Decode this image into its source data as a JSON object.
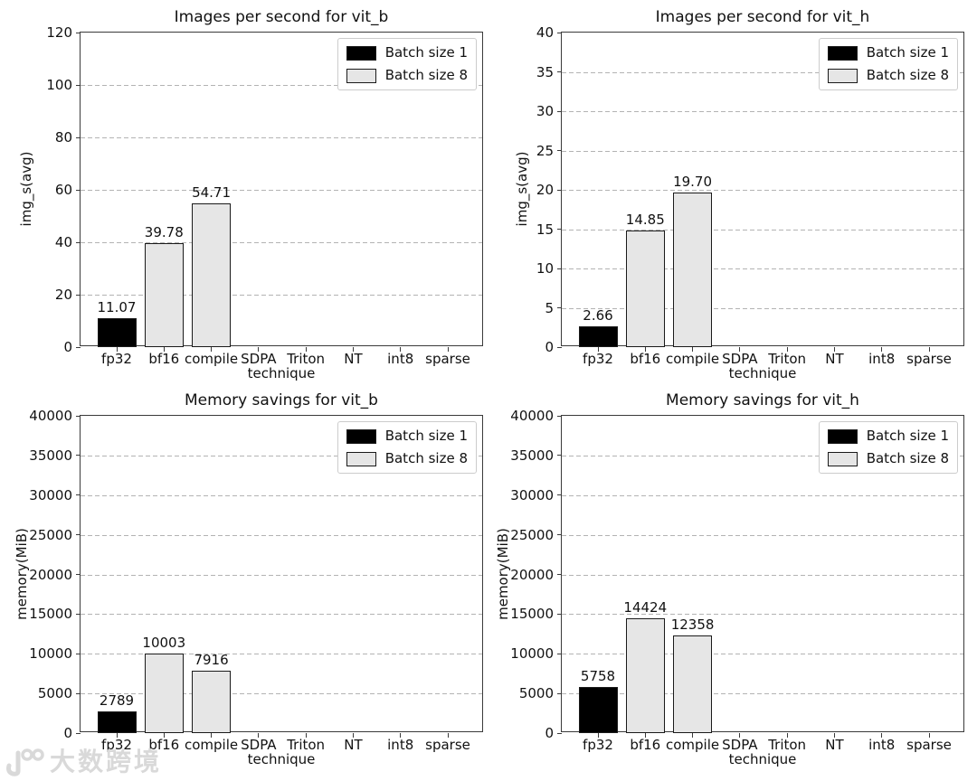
{
  "colors": {
    "batch1": "#000000",
    "batch8": "#e6e6e6",
    "bar_edge": "#1a1a1a",
    "grid": "#b3b3b3",
    "spine": "#3a3a3a",
    "background": "#ffffff",
    "watermark": "#d9d9d9"
  },
  "watermark": {
    "logo": "100",
    "text": "大数跨境"
  },
  "chart_data": [
    {
      "type": "bar",
      "title": "Images per second for vit_b",
      "xlabel": "technique",
      "ylabel": "img_s(avg)",
      "categories": [
        "fp32",
        "bf16",
        "compile",
        "SDPA",
        "Triton",
        "NT",
        "int8",
        "sparse"
      ],
      "ylim": [
        0,
        120
      ],
      "yticks": [
        0,
        20,
        40,
        60,
        80,
        100,
        120
      ],
      "grid": "horizontal-dashed",
      "legend_position": "upper-right",
      "legend": [
        "Batch size 1",
        "Batch size 8"
      ],
      "series": [
        {
          "name": "Batch size 1",
          "values": [
            11.07,
            null,
            null,
            null,
            null,
            null,
            null,
            null
          ]
        },
        {
          "name": "Batch size 8",
          "values": [
            null,
            39.78,
            54.71,
            null,
            null,
            null,
            null,
            null
          ]
        }
      ],
      "value_labels": [
        "11.07",
        "39.78",
        "54.71",
        null,
        null,
        null,
        null,
        null
      ]
    },
    {
      "type": "bar",
      "title": "Images per second for vit_h",
      "xlabel": "technique",
      "ylabel": "img_s(avg)",
      "categories": [
        "fp32",
        "bf16",
        "compile",
        "SDPA",
        "Triton",
        "NT",
        "int8",
        "sparse"
      ],
      "ylim": [
        0,
        40
      ],
      "yticks": [
        0,
        5,
        10,
        15,
        20,
        25,
        30,
        35,
        40
      ],
      "grid": "horizontal-dashed",
      "legend_position": "upper-right",
      "legend": [
        "Batch size 1",
        "Batch size 8"
      ],
      "series": [
        {
          "name": "Batch size 1",
          "values": [
            2.66,
            null,
            null,
            null,
            null,
            null,
            null,
            null
          ]
        },
        {
          "name": "Batch size 8",
          "values": [
            null,
            14.85,
            19.7,
            null,
            null,
            null,
            null,
            null
          ]
        }
      ],
      "value_labels": [
        "2.66",
        "14.85",
        "19.70",
        null,
        null,
        null,
        null,
        null
      ]
    },
    {
      "type": "bar",
      "title": "Memory savings for vit_b",
      "xlabel": "technique",
      "ylabel": "memory(MiB)",
      "categories": [
        "fp32",
        "bf16",
        "compile",
        "SDPA",
        "Triton",
        "NT",
        "int8",
        "sparse"
      ],
      "ylim": [
        0,
        40000
      ],
      "yticks": [
        0,
        5000,
        10000,
        15000,
        20000,
        25000,
        30000,
        35000,
        40000
      ],
      "grid": "horizontal-dashed",
      "legend_position": "upper-right",
      "legend": [
        "Batch size 1",
        "Batch size 8"
      ],
      "series": [
        {
          "name": "Batch size 1",
          "values": [
            2789,
            null,
            null,
            null,
            null,
            null,
            null,
            null
          ]
        },
        {
          "name": "Batch size 8",
          "values": [
            null,
            10003,
            7916,
            null,
            null,
            null,
            null,
            null
          ]
        }
      ],
      "value_labels": [
        "2789",
        "10003",
        "7916",
        null,
        null,
        null,
        null,
        null
      ]
    },
    {
      "type": "bar",
      "title": "Memory savings for vit_h",
      "xlabel": "technique",
      "ylabel": "memory(MiB)",
      "categories": [
        "fp32",
        "bf16",
        "compile",
        "SDPA",
        "Triton",
        "NT",
        "int8",
        "sparse"
      ],
      "ylim": [
        0,
        40000
      ],
      "yticks": [
        0,
        5000,
        10000,
        15000,
        20000,
        25000,
        30000,
        35000,
        40000
      ],
      "grid": "horizontal-dashed",
      "legend_position": "upper-right",
      "legend": [
        "Batch size 1",
        "Batch size 8"
      ],
      "series": [
        {
          "name": "Batch size 1",
          "values": [
            5758,
            null,
            null,
            null,
            null,
            null,
            null,
            null
          ]
        },
        {
          "name": "Batch size 8",
          "values": [
            null,
            14424,
            12358,
            null,
            null,
            null,
            null,
            null
          ]
        }
      ],
      "value_labels": [
        "5758",
        "14424",
        "12358",
        null,
        null,
        null,
        null,
        null
      ]
    }
  ]
}
